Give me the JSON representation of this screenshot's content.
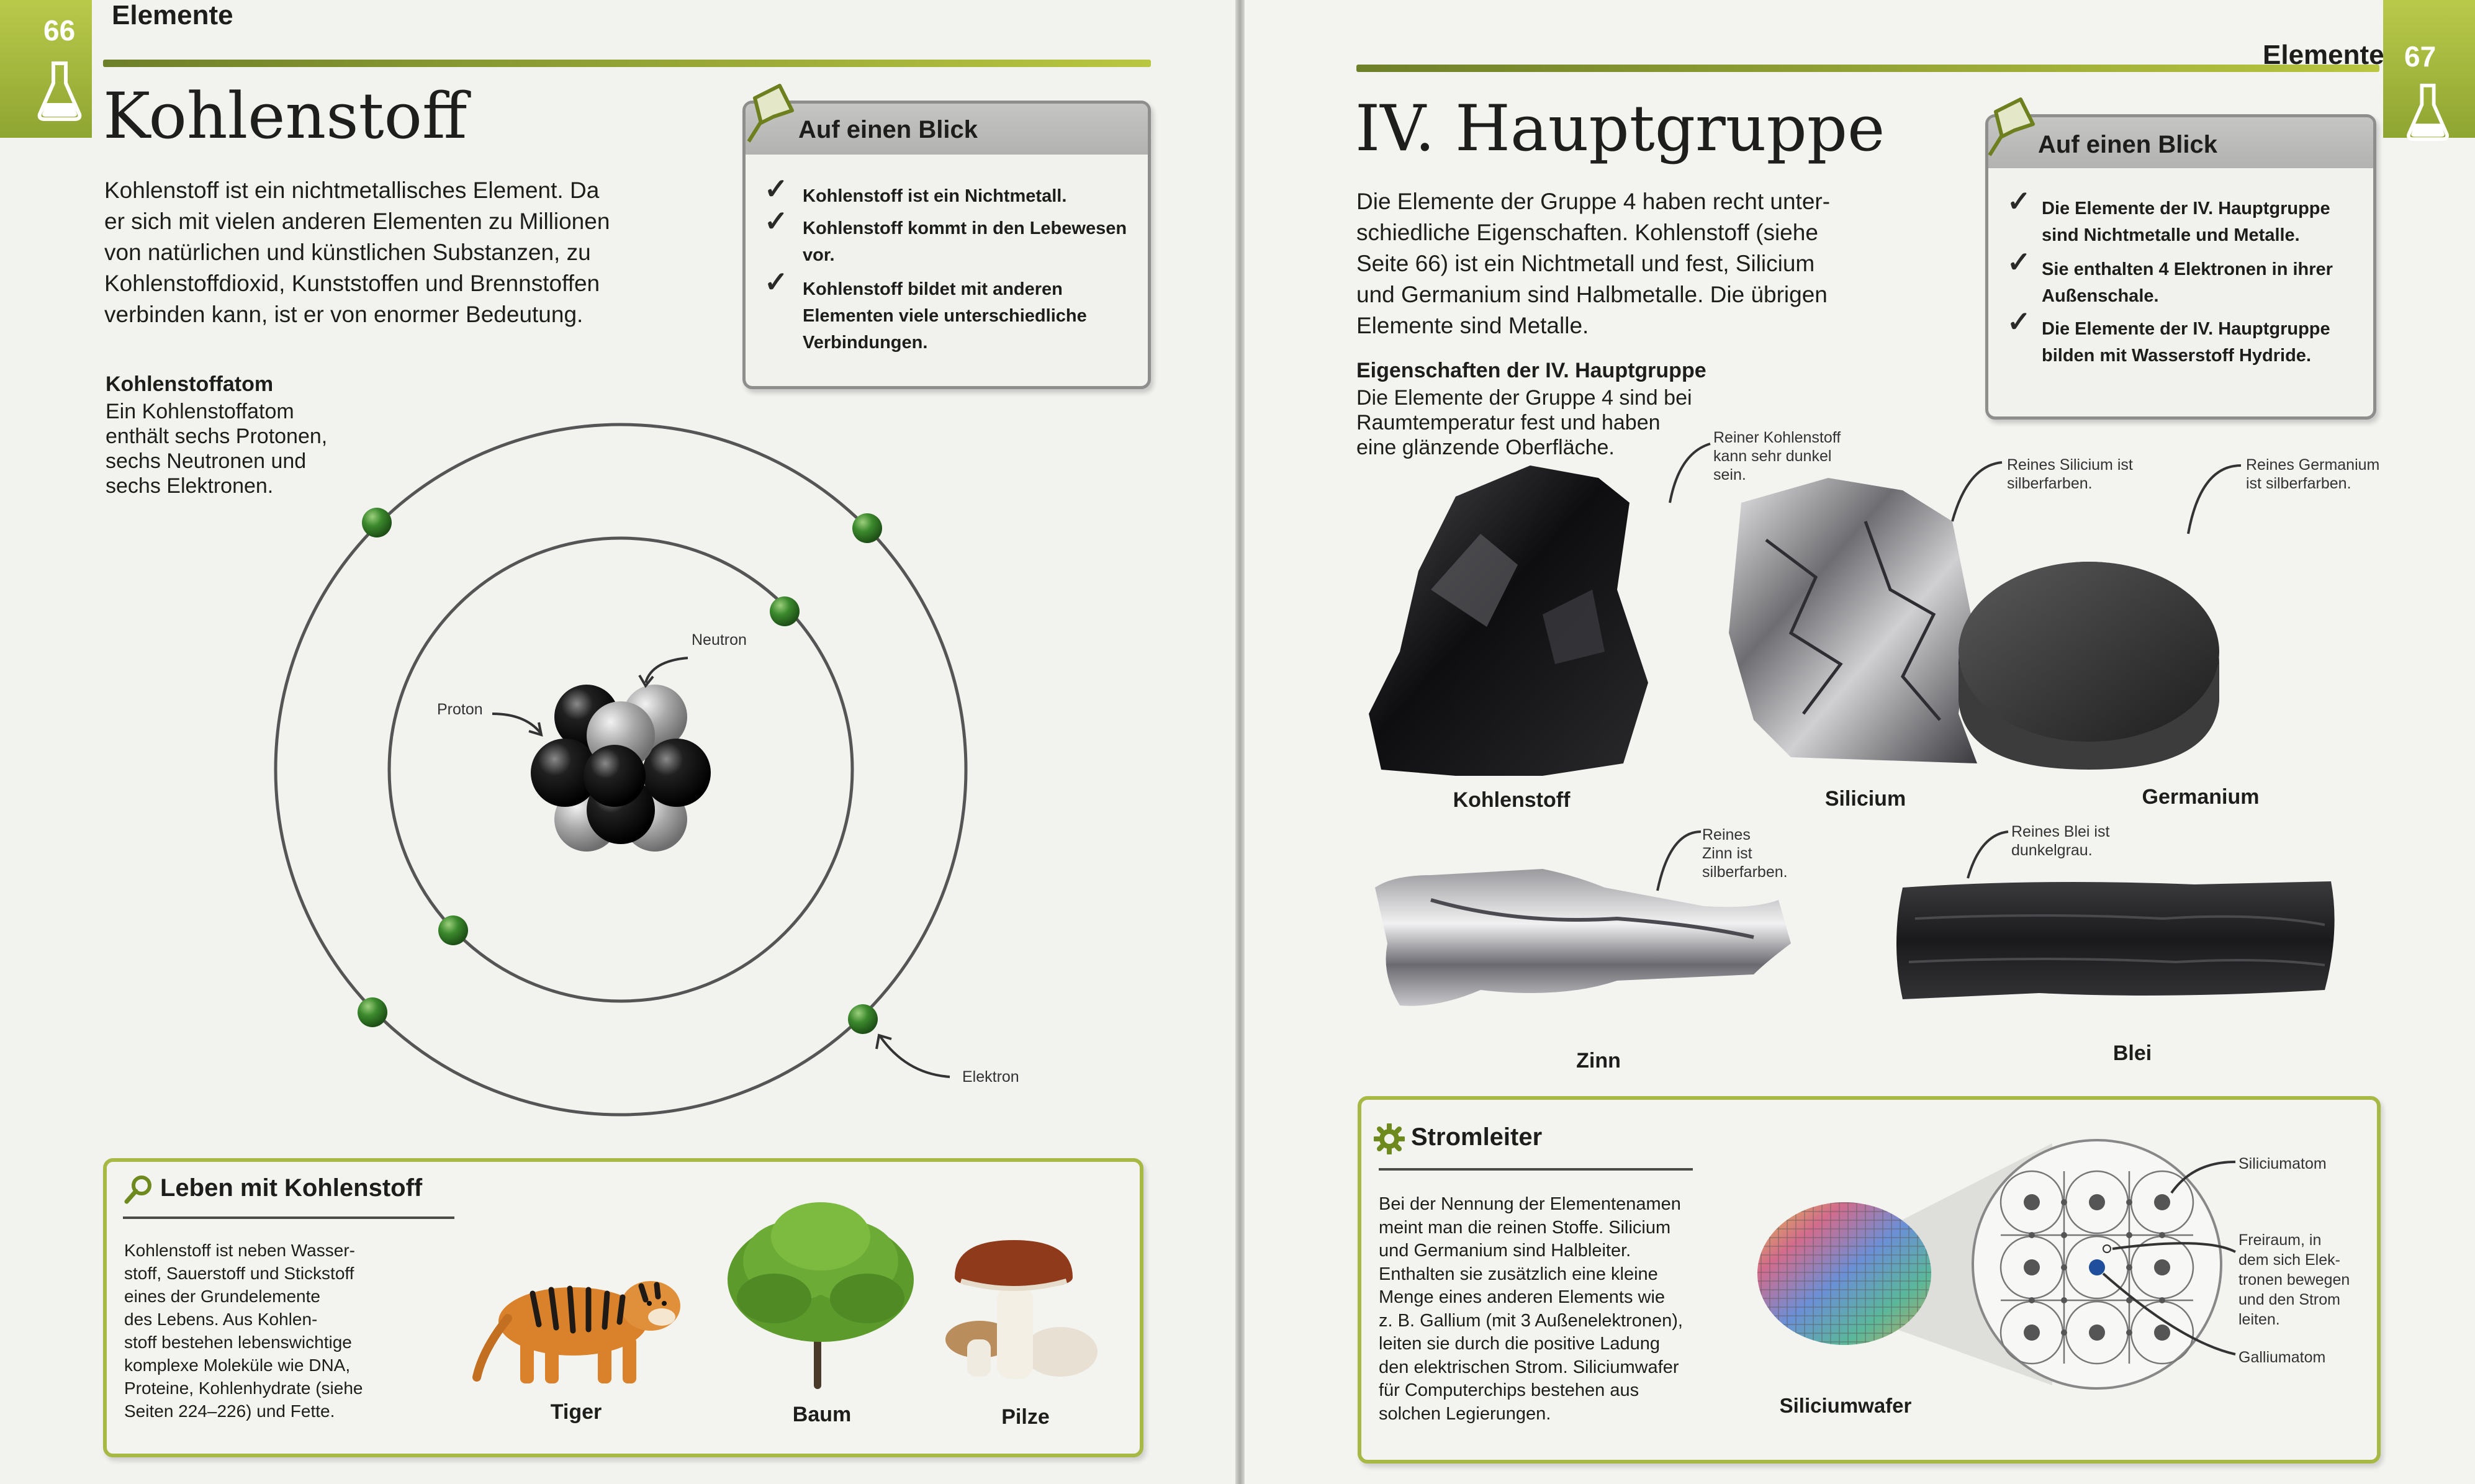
{
  "left_page": {
    "page_number": "66",
    "section": "Elemente",
    "title": "Kohlenstoff",
    "intro": [
      "Kohlenstoff ist ein nichtmetallisches Element. Da",
      "er sich mit vielen anderen Elementen zu Millionen",
      "von natürlichen und künstlichen Substanzen, zu",
      "Kohlenstoffdioxid, Kunststoffen und Brennstoffen",
      "verbinden kann, ist er von enormer Bedeutung."
    ],
    "glance_box": {
      "title": "Auf einen Blick",
      "items": [
        [
          "Kohlenstoff ist ein Nichtmetall."
        ],
        [
          "Kohlenstoff kommt in den Lebewesen",
          "vor."
        ],
        [
          "Kohlenstoff bildet mit anderen",
          "Elementen viele unterschiedliche",
          "Verbindungen."
        ]
      ]
    },
    "atom": {
      "heading": "Kohlenstoffatom",
      "text": [
        "Ein Kohlenstoffatom",
        "enthält sechs Protonen,",
        "sechs Neutronen und",
        "sechs Elektronen."
      ],
      "label_neutron": "Neutron",
      "label_proton": "Proton",
      "label_electron": "Elektron"
    },
    "life_box": {
      "title": "Leben mit Kohlenstoff",
      "text": [
        "Kohlenstoff ist neben Wasser-",
        "stoff, Sauerstoff und Stickstoff",
        "eines der Grundelemente",
        "des Lebens. Aus Kohlen-",
        "stoff bestehen lebenswichtige",
        "komplexe Moleküle wie DNA,",
        "Proteine, Kohlenhydrate (siehe",
        "Seiten 224–226) und Fette."
      ],
      "captions": {
        "tiger": "Tiger",
        "tree": "Baum",
        "mushrooms": "Pilze"
      }
    }
  },
  "right_page": {
    "page_number": "67",
    "section": "Elemente",
    "title": "IV. Hauptgruppe",
    "intro": [
      "Die Elemente der Gruppe 4 haben recht unter-",
      "schiedliche Eigenschaften. Kohlenstoff (siehe",
      "Seite 66) ist ein Nichtmetall und fest, Silicium",
      "und Germanium sind Halbmetalle. Die übrigen",
      "Elemente sind Metalle."
    ],
    "glance_box": {
      "title": "Auf einen Blick",
      "items": [
        [
          "Die Elemente der IV. Hauptgruppe",
          "sind Nichtmetalle und Metalle."
        ],
        [
          "Sie enthalten 4 Elektronen in ihrer",
          "Außenschale."
        ],
        [
          "Die Elemente der IV. Hauptgruppe",
          "bilden mit Wasserstoff Hydride."
        ]
      ]
    },
    "properties": {
      "heading": "Eigenschaften der IV. Hauptgruppe",
      "text": [
        "Die Elemente der Gruppe 4 sind bei",
        "Raumtemperatur fest und haben",
        "eine glänzende Oberfläche."
      ]
    },
    "elements": {
      "carbon": {
        "caption": "Kohlenstoff",
        "note": [
          "Reiner Kohlenstoff",
          "kann sehr dunkel",
          "sein."
        ]
      },
      "silicon": {
        "caption": "Silicium",
        "note": [
          "Reines Silicium ist",
          "silberfarben."
        ]
      },
      "germanium": {
        "caption": "Germanium",
        "note": [
          "Reines Germanium",
          "ist silberfarben."
        ]
      },
      "tin": {
        "caption": "Zinn",
        "note": [
          "Reines",
          "Zinn ist",
          "silberfarben."
        ]
      },
      "lead": {
        "caption": "Blei",
        "note": [
          "Reines Blei ist",
          "dunkelgrau."
        ]
      }
    },
    "conductor_box": {
      "title": "Stromleiter",
      "text": [
        "Bei der Nennung der Elementenamen",
        "meint man die reinen Stoffe. Silicium",
        "und Germanium sind Halbleiter.",
        "Enthalten sie zusätzlich eine kleine",
        "Menge eines anderen Elements wie",
        "z. B. Gallium (mit 3 Außenelektronen),",
        "leiten sie durch die positive Ladung",
        "den elektrischen Strom. Siliciumwafer",
        "für Computerchips bestehen aus",
        "solchen Legierungen."
      ],
      "wafer_caption": "Siliciumwafer",
      "label_silicon_atom": "Siliciumatom",
      "label_space": [
        "Freiraum, in",
        "dem sich Elek-",
        "tronen bewegen",
        "und den Strom",
        "leiten."
      ],
      "label_gallium": "Galliumatom"
    }
  }
}
